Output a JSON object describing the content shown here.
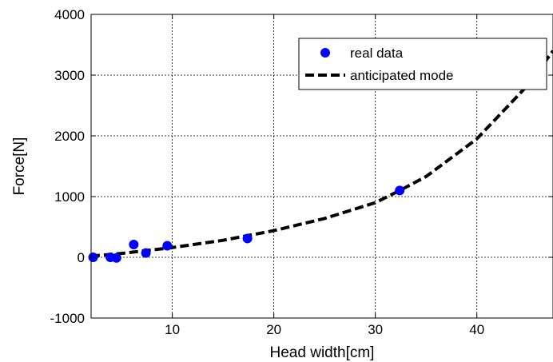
{
  "chart_data": {
    "type": "scatter",
    "title": "",
    "xlabel": "Head width[cm]",
    "ylabel": "Force[N]",
    "xlim": [
      2,
      47.5
    ],
    "ylim": [
      -1000,
      4000
    ],
    "grid": true,
    "x_ticks": [
      10,
      20,
      30,
      40
    ],
    "x_tick_labels": [
      "10",
      "20",
      "30",
      "40"
    ],
    "y_ticks": [
      -1000,
      0,
      1000,
      2000,
      3000,
      4000
    ],
    "y_tick_labels": [
      "-1000",
      "0",
      "1000",
      "2000",
      "3000",
      "4000"
    ],
    "legend_position": "top-right",
    "series": [
      {
        "name": "real data",
        "kind": "scatter",
        "color": "#0000ff",
        "x": [
          2.2,
          3.9,
          4.5,
          6.2,
          7.4,
          9.5,
          17.4,
          32.4
        ],
        "y": [
          0,
          0,
          -10,
          210,
          70,
          190,
          310,
          1100
        ]
      },
      {
        "name": "anticipated mode",
        "kind": "line",
        "style": "dashed",
        "color": "#000000",
        "x": [
          2,
          5,
          10,
          15,
          20,
          25,
          30,
          32.4,
          35,
          40,
          45,
          47.5
        ],
        "y": [
          20,
          65,
          160,
          280,
          440,
          640,
          900,
          1100,
          1330,
          1950,
          2830,
          3400
        ]
      }
    ]
  }
}
